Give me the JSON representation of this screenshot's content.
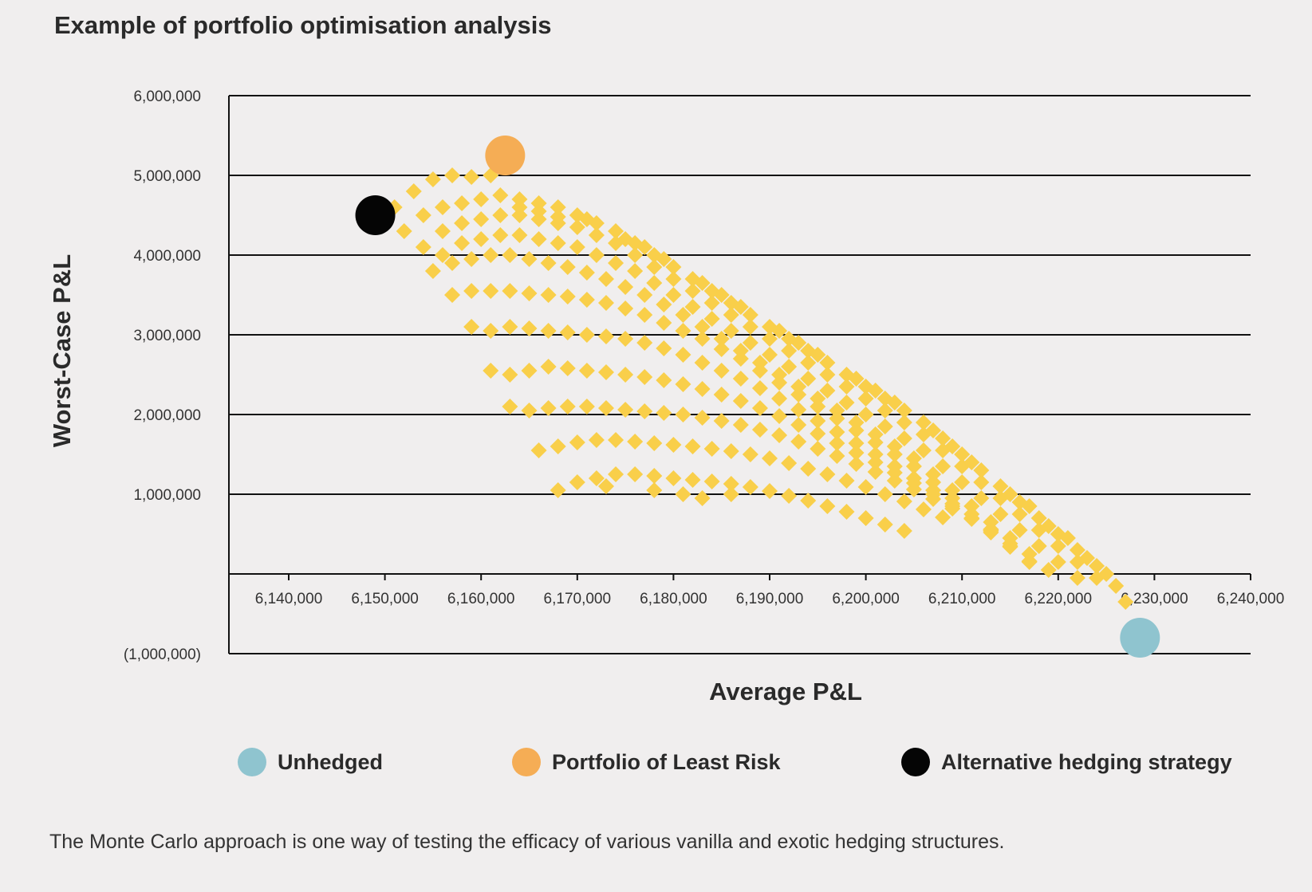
{
  "chart_data": {
    "type": "scatter",
    "title": "Example of portfolio optimisation analysis",
    "xlabel": "Average P&L",
    "ylabel": "Worst-Case P&L",
    "xlim": [
      6135000,
      6240000
    ],
    "ylim": [
      -1000000,
      6000000
    ],
    "x_ticks": [
      {
        "value": 6140000,
        "label": "6,140,000"
      },
      {
        "value": 6150000,
        "label": "6,150,000"
      },
      {
        "value": 6160000,
        "label": "6,160,000"
      },
      {
        "value": 6170000,
        "label": "6,170,000"
      },
      {
        "value": 6180000,
        "label": "6,180,000"
      },
      {
        "value": 6190000,
        "label": "6,190,000"
      },
      {
        "value": 6200000,
        "label": "6,200,000"
      },
      {
        "value": 6210000,
        "label": "6,210,000"
      },
      {
        "value": 6220000,
        "label": "6,220,000"
      },
      {
        "value": 6230000,
        "label": "6,230,000"
      },
      {
        "value": 6240000,
        "label": "6,240,000"
      }
    ],
    "y_ticks": [
      {
        "value": 6000000,
        "label": "6,000,000"
      },
      {
        "value": 5000000,
        "label": "5,000,000"
      },
      {
        "value": 4000000,
        "label": "4,000,000"
      },
      {
        "value": 3000000,
        "label": "3,000,000"
      },
      {
        "value": 2000000,
        "label": "2,000,000"
      },
      {
        "value": 1000000,
        "label": "1,000,000"
      },
      {
        "value": 0,
        "label": ""
      },
      {
        "value": -1000000,
        "label": "(1,000,000)"
      }
    ],
    "grid": "horizontal",
    "simulated_points_color": "#f9cf4a",
    "simulated_points": [
      [
        6151000,
        4600000
      ],
      [
        6153000,
        4800000
      ],
      [
        6155000,
        4950000
      ],
      [
        6157000,
        5000000
      ],
      [
        6159000,
        4980000
      ],
      [
        6161000,
        5000000
      ],
      [
        6152000,
        4300000
      ],
      [
        6154000,
        4500000
      ],
      [
        6156000,
        4600000
      ],
      [
        6158000,
        4650000
      ],
      [
        6160000,
        4700000
      ],
      [
        6162000,
        4750000
      ],
      [
        6164000,
        4700000
      ],
      [
        6166000,
        4650000
      ],
      [
        6168000,
        4600000
      ],
      [
        6170000,
        4500000
      ],
      [
        6172000,
        4400000
      ],
      [
        6174000,
        4300000
      ],
      [
        6176000,
        4150000
      ],
      [
        6178000,
        4000000
      ],
      [
        6180000,
        3850000
      ],
      [
        6182000,
        3700000
      ],
      [
        6184000,
        3550000
      ],
      [
        6186000,
        3400000
      ],
      [
        6188000,
        3250000
      ],
      [
        6190000,
        3100000
      ],
      [
        6192000,
        2950000
      ],
      [
        6194000,
        2800000
      ],
      [
        6196000,
        2650000
      ],
      [
        6198000,
        2500000
      ],
      [
        6200000,
        2350000
      ],
      [
        6202000,
        2200000
      ],
      [
        6204000,
        2050000
      ],
      [
        6206000,
        1900000
      ],
      [
        6208000,
        1700000
      ],
      [
        6210000,
        1500000
      ],
      [
        6212000,
        1300000
      ],
      [
        6214000,
        1100000
      ],
      [
        6216000,
        900000
      ],
      [
        6218000,
        700000
      ],
      [
        6220000,
        500000
      ],
      [
        6222000,
        300000
      ],
      [
        6224000,
        100000
      ],
      [
        6226000,
        -150000
      ],
      [
        6227000,
        -350000
      ],
      [
        6154000,
        4100000
      ],
      [
        6156000,
        4300000
      ],
      [
        6158000,
        4400000
      ],
      [
        6160000,
        4450000
      ],
      [
        6162000,
        4500000
      ],
      [
        6164000,
        4500000
      ],
      [
        6166000,
        4450000
      ],
      [
        6168000,
        4400000
      ],
      [
        6170000,
        4350000
      ],
      [
        6172000,
        4250000
      ],
      [
        6174000,
        4150000
      ],
      [
        6176000,
        4000000
      ],
      [
        6178000,
        3850000
      ],
      [
        6180000,
        3700000
      ],
      [
        6182000,
        3550000
      ],
      [
        6184000,
        3400000
      ],
      [
        6186000,
        3250000
      ],
      [
        6188000,
        3100000
      ],
      [
        6190000,
        2950000
      ],
      [
        6192000,
        2800000
      ],
      [
        6194000,
        2650000
      ],
      [
        6196000,
        2500000
      ],
      [
        6198000,
        2350000
      ],
      [
        6200000,
        2200000
      ],
      [
        6202000,
        2050000
      ],
      [
        6204000,
        1900000
      ],
      [
        6206000,
        1750000
      ],
      [
        6208000,
        1550000
      ],
      [
        6210000,
        1350000
      ],
      [
        6212000,
        1150000
      ],
      [
        6214000,
        950000
      ],
      [
        6216000,
        750000
      ],
      [
        6218000,
        550000
      ],
      [
        6220000,
        350000
      ],
      [
        6222000,
        150000
      ],
      [
        6224000,
        -50000
      ],
      [
        6156000,
        4000000
      ],
      [
        6158000,
        4150000
      ],
      [
        6160000,
        4200000
      ],
      [
        6162000,
        4250000
      ],
      [
        6164000,
        4250000
      ],
      [
        6166000,
        4200000
      ],
      [
        6168000,
        4150000
      ],
      [
        6170000,
        4100000
      ],
      [
        6172000,
        4000000
      ],
      [
        6174000,
        3900000
      ],
      [
        6176000,
        3800000
      ],
      [
        6178000,
        3650000
      ],
      [
        6180000,
        3500000
      ],
      [
        6182000,
        3350000
      ],
      [
        6184000,
        3200000
      ],
      [
        6186000,
        3050000
      ],
      [
        6188000,
        2900000
      ],
      [
        6190000,
        2750000
      ],
      [
        6192000,
        2600000
      ],
      [
        6194000,
        2450000
      ],
      [
        6196000,
        2300000
      ],
      [
        6198000,
        2150000
      ],
      [
        6200000,
        2000000
      ],
      [
        6202000,
        1850000
      ],
      [
        6204000,
        1700000
      ],
      [
        6206000,
        1550000
      ],
      [
        6208000,
        1350000
      ],
      [
        6210000,
        1150000
      ],
      [
        6212000,
        950000
      ],
      [
        6214000,
        750000
      ],
      [
        6216000,
        550000
      ],
      [
        6218000,
        350000
      ],
      [
        6220000,
        150000
      ],
      [
        6222000,
        -50000
      ],
      [
        6155000,
        3800000
      ],
      [
        6157000,
        3900000
      ],
      [
        6159000,
        3950000
      ],
      [
        6161000,
        4000000
      ],
      [
        6163000,
        4000000
      ],
      [
        6165000,
        3950000
      ],
      [
        6167000,
        3900000
      ],
      [
        6169000,
        3850000
      ],
      [
        6171000,
        3780000
      ],
      [
        6173000,
        3700000
      ],
      [
        6175000,
        3600000
      ],
      [
        6177000,
        3500000
      ],
      [
        6179000,
        3380000
      ],
      [
        6181000,
        3250000
      ],
      [
        6183000,
        3100000
      ],
      [
        6185000,
        2950000
      ],
      [
        6187000,
        2800000
      ],
      [
        6189000,
        2650000
      ],
      [
        6191000,
        2500000
      ],
      [
        6193000,
        2350000
      ],
      [
        6195000,
        2200000
      ],
      [
        6197000,
        2050000
      ],
      [
        6199000,
        1900000
      ],
      [
        6201000,
        1750000
      ],
      [
        6203000,
        1600000
      ],
      [
        6205000,
        1450000
      ],
      [
        6207000,
        1250000
      ],
      [
        6209000,
        1050000
      ],
      [
        6211000,
        850000
      ],
      [
        6213000,
        650000
      ],
      [
        6215000,
        450000
      ],
      [
        6217000,
        250000
      ],
      [
        6219000,
        50000
      ],
      [
        6157000,
        3500000
      ],
      [
        6159000,
        3550000
      ],
      [
        6161000,
        3550000
      ],
      [
        6163000,
        3550000
      ],
      [
        6165000,
        3520000
      ],
      [
        6167000,
        3500000
      ],
      [
        6169000,
        3480000
      ],
      [
        6171000,
        3440000
      ],
      [
        6173000,
        3400000
      ],
      [
        6175000,
        3330000
      ],
      [
        6177000,
        3250000
      ],
      [
        6179000,
        3150000
      ],
      [
        6181000,
        3050000
      ],
      [
        6183000,
        2950000
      ],
      [
        6185000,
        2820000
      ],
      [
        6187000,
        2700000
      ],
      [
        6189000,
        2550000
      ],
      [
        6191000,
        2400000
      ],
      [
        6193000,
        2250000
      ],
      [
        6195000,
        2100000
      ],
      [
        6197000,
        1950000
      ],
      [
        6199000,
        1800000
      ],
      [
        6201000,
        1650000
      ],
      [
        6203000,
        1500000
      ],
      [
        6205000,
        1350000
      ],
      [
        6207000,
        1150000
      ],
      [
        6209000,
        950000
      ],
      [
        6211000,
        750000
      ],
      [
        6213000,
        550000
      ],
      [
        6215000,
        350000
      ],
      [
        6217000,
        150000
      ],
      [
        6159000,
        3100000
      ],
      [
        6161000,
        3050000
      ],
      [
        6163000,
        3100000
      ],
      [
        6165000,
        3080000
      ],
      [
        6167000,
        3050000
      ],
      [
        6169000,
        3030000
      ],
      [
        6171000,
        3000000
      ],
      [
        6173000,
        2980000
      ],
      [
        6175000,
        2950000
      ],
      [
        6177000,
        2900000
      ],
      [
        6179000,
        2830000
      ],
      [
        6181000,
        2750000
      ],
      [
        6183000,
        2650000
      ],
      [
        6185000,
        2550000
      ],
      [
        6187000,
        2450000
      ],
      [
        6189000,
        2330000
      ],
      [
        6191000,
        2200000
      ],
      [
        6193000,
        2060000
      ],
      [
        6195000,
        1920000
      ],
      [
        6197000,
        1780000
      ],
      [
        6199000,
        1640000
      ],
      [
        6201000,
        1500000
      ],
      [
        6203000,
        1350000
      ],
      [
        6205000,
        1200000
      ],
      [
        6207000,
        1050000
      ],
      [
        6209000,
        880000
      ],
      [
        6211000,
        700000
      ],
      [
        6213000,
        520000
      ],
      [
        6215000,
        340000
      ],
      [
        6217000,
        160000
      ],
      [
        6161000,
        2550000
      ],
      [
        6163000,
        2500000
      ],
      [
        6165000,
        2550000
      ],
      [
        6167000,
        2600000
      ],
      [
        6169000,
        2580000
      ],
      [
        6171000,
        2550000
      ],
      [
        6173000,
        2530000
      ],
      [
        6175000,
        2500000
      ],
      [
        6177000,
        2470000
      ],
      [
        6179000,
        2430000
      ],
      [
        6181000,
        2380000
      ],
      [
        6183000,
        2320000
      ],
      [
        6185000,
        2250000
      ],
      [
        6187000,
        2170000
      ],
      [
        6189000,
        2080000
      ],
      [
        6191000,
        1980000
      ],
      [
        6193000,
        1870000
      ],
      [
        6195000,
        1760000
      ],
      [
        6197000,
        1640000
      ],
      [
        6199000,
        1520000
      ],
      [
        6201000,
        1400000
      ],
      [
        6203000,
        1270000
      ],
      [
        6205000,
        1140000
      ],
      [
        6207000,
        1000000
      ],
      [
        6209000,
        850000
      ],
      [
        6211000,
        700000
      ],
      [
        6213000,
        540000
      ],
      [
        6215000,
        380000
      ],
      [
        6163000,
        2100000
      ],
      [
        6165000,
        2050000
      ],
      [
        6167000,
        2080000
      ],
      [
        6169000,
        2100000
      ],
      [
        6171000,
        2100000
      ],
      [
        6173000,
        2080000
      ],
      [
        6175000,
        2060000
      ],
      [
        6177000,
        2040000
      ],
      [
        6179000,
        2020000
      ],
      [
        6181000,
        2000000
      ],
      [
        6183000,
        1960000
      ],
      [
        6185000,
        1920000
      ],
      [
        6187000,
        1870000
      ],
      [
        6189000,
        1810000
      ],
      [
        6191000,
        1740000
      ],
      [
        6193000,
        1660000
      ],
      [
        6195000,
        1570000
      ],
      [
        6197000,
        1480000
      ],
      [
        6199000,
        1380000
      ],
      [
        6201000,
        1280000
      ],
      [
        6203000,
        1170000
      ],
      [
        6205000,
        1060000
      ],
      [
        6207000,
        940000
      ],
      [
        6209000,
        820000
      ],
      [
        6211000,
        690000
      ],
      [
        6213000,
        560000
      ],
      [
        6166000,
        1550000
      ],
      [
        6168000,
        1600000
      ],
      [
        6170000,
        1650000
      ],
      [
        6172000,
        1680000
      ],
      [
        6174000,
        1680000
      ],
      [
        6176000,
        1660000
      ],
      [
        6178000,
        1640000
      ],
      [
        6180000,
        1620000
      ],
      [
        6182000,
        1600000
      ],
      [
        6184000,
        1570000
      ],
      [
        6186000,
        1540000
      ],
      [
        6188000,
        1500000
      ],
      [
        6190000,
        1450000
      ],
      [
        6192000,
        1390000
      ],
      [
        6194000,
        1320000
      ],
      [
        6196000,
        1250000
      ],
      [
        6198000,
        1170000
      ],
      [
        6200000,
        1090000
      ],
      [
        6202000,
        1000000
      ],
      [
        6204000,
        910000
      ],
      [
        6206000,
        810000
      ],
      [
        6208000,
        710000
      ],
      [
        6168000,
        1050000
      ],
      [
        6170000,
        1150000
      ],
      [
        6172000,
        1200000
      ],
      [
        6174000,
        1250000
      ],
      [
        6176000,
        1250000
      ],
      [
        6178000,
        1230000
      ],
      [
        6180000,
        1200000
      ],
      [
        6182000,
        1180000
      ],
      [
        6184000,
        1160000
      ],
      [
        6186000,
        1130000
      ],
      [
        6188000,
        1090000
      ],
      [
        6190000,
        1040000
      ],
      [
        6192000,
        980000
      ],
      [
        6194000,
        920000
      ],
      [
        6196000,
        850000
      ],
      [
        6198000,
        780000
      ],
      [
        6200000,
        700000
      ],
      [
        6202000,
        620000
      ],
      [
        6204000,
        540000
      ],
      [
        6173000,
        1100000
      ],
      [
        6178000,
        1050000
      ],
      [
        6181000,
        1000000
      ],
      [
        6183000,
        950000
      ],
      [
        6186000,
        1000000
      ],
      [
        6164000,
        4600000
      ],
      [
        6166000,
        4550000
      ],
      [
        6168000,
        4480000
      ],
      [
        6175000,
        4200000
      ],
      [
        6179000,
        3950000
      ],
      [
        6183000,
        3650000
      ],
      [
        6187000,
        3350000
      ],
      [
        6191000,
        3050000
      ],
      [
        6195000,
        2750000
      ],
      [
        6199000,
        2450000
      ],
      [
        6203000,
        2150000
      ],
      [
        6207000,
        1800000
      ],
      [
        6211000,
        1400000
      ],
      [
        6215000,
        1000000
      ],
      [
        6219000,
        600000
      ],
      [
        6223000,
        200000
      ],
      [
        6171000,
        4450000
      ],
      [
        6177000,
        4100000
      ],
      [
        6185000,
        3500000
      ],
      [
        6193000,
        2900000
      ],
      [
        6201000,
        2300000
      ],
      [
        6209000,
        1600000
      ],
      [
        6217000,
        850000
      ],
      [
        6221000,
        450000
      ],
      [
        6225000,
        0
      ]
    ],
    "highlight_points": [
      {
        "name": "Unhedged",
        "x": 6228500,
        "y": -800000,
        "color": "#8fc4cf"
      },
      {
        "name": "Portfolio of Least Risk",
        "x": 6162500,
        "y": 5250000,
        "color": "#f5ad55"
      },
      {
        "name": "Alternative hedging strategy",
        "x": 6149000,
        "y": 4500000,
        "color": "#050505"
      }
    ],
    "legend": [
      {
        "label": "Unhedged",
        "color": "#8fc4cf"
      },
      {
        "label": "Portfolio of Least Risk",
        "color": "#f5ad55"
      },
      {
        "label": "Alternative hedging strategy",
        "color": "#050505"
      }
    ],
    "legend_position": "bottom"
  },
  "caption": "The Monte Carlo approach is one way of testing the efficacy of various vanilla and exotic hedging structures."
}
